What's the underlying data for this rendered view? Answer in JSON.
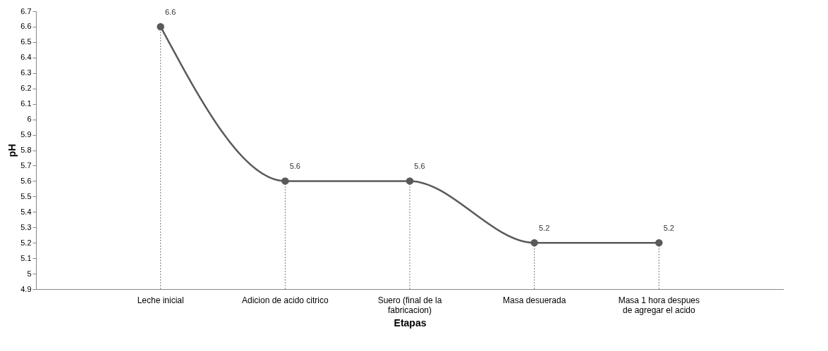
{
  "chart_data": {
    "type": "line",
    "xlabel": "Etapas",
    "ylabel": "pH",
    "categories": [
      "Leche inicial",
      "Adicion de acido citrico",
      "Suero (final de la\nfabricacion)",
      "Masa desuerada",
      "Masa 1 hora despues\nde agregar el acido"
    ],
    "series": [
      {
        "color": "#5a5a5a",
        "values": [
          6.6,
          5.6,
          5.6,
          5.2,
          5.2
        ]
      }
    ],
    "ylim": [
      4.9,
      6.7
    ],
    "yticks": [
      4.9,
      5,
      5.1,
      5.2,
      5.3,
      5.4,
      5.5,
      5.6,
      5.7,
      5.8,
      5.9,
      6,
      6.1,
      6.2,
      6.3,
      6.4,
      6.5,
      6.6,
      6.7
    ],
    "ref_lines": [
      {
        "axis": "x",
        "value": "Leche inicial",
        "label": null,
        "line_style": "dotted",
        "color": "#777777"
      },
      {
        "axis": "x",
        "value": "Adicion de acido citrico",
        "label": null,
        "line_style": "dotted",
        "color": "#777777"
      },
      {
        "axis": "x",
        "value": "Suero (final de la\nfabricacion)",
        "label": null,
        "line_style": "dotted",
        "color": "#777777"
      },
      {
        "axis": "x",
        "value": "Masa desuerada",
        "label": null,
        "line_style": "dotted",
        "color": "#777777"
      },
      {
        "axis": "x",
        "value": "Masa 1 hora despues\nde agregar el acido",
        "label": null,
        "line_style": "dotted",
        "color": "#777777"
      }
    ],
    "marker": "circle",
    "line_style": "solid",
    "data_labels": true
  }
}
